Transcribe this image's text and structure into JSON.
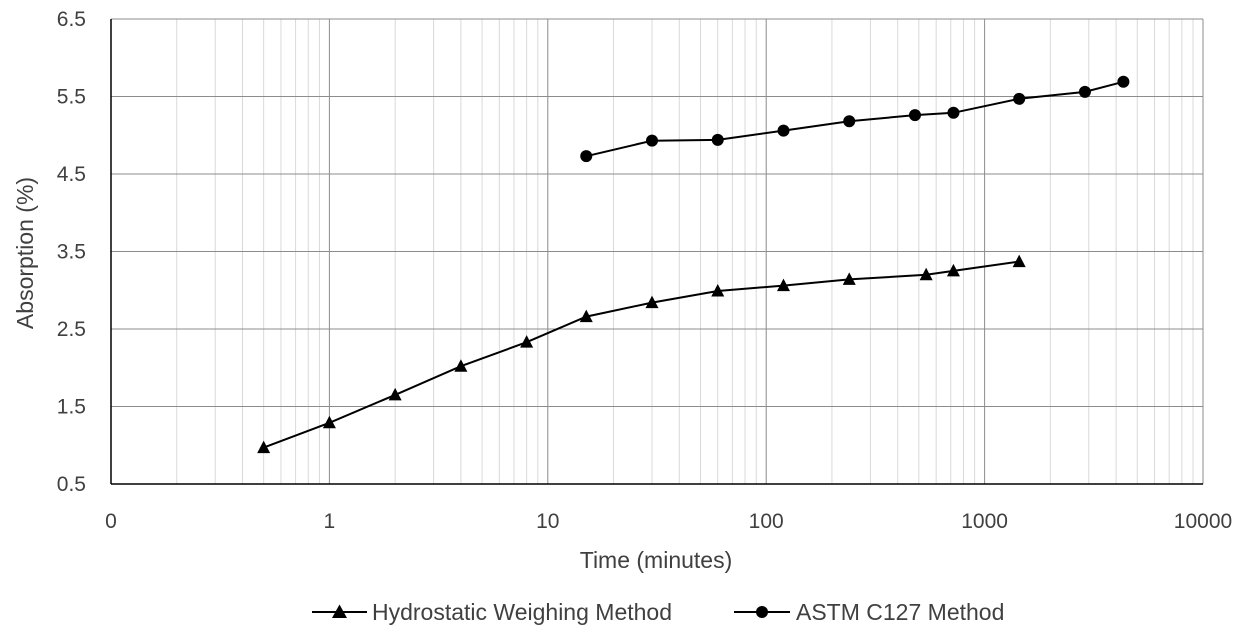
{
  "chart_data": {
    "type": "line",
    "xlabel": "Time (minutes)",
    "ylabel": "Absorption (%)",
    "x_scale": "log",
    "x_ticks": [
      "0",
      "1",
      "10",
      "100",
      "1000",
      "10000"
    ],
    "y_ticks": [
      "6.5",
      "5.5",
      "4.5",
      "3.5",
      "2.5",
      "1.5",
      "0.5"
    ],
    "xlim": [
      0.1,
      10000
    ],
    "ylim": [
      0.5,
      6.5
    ],
    "grid": true,
    "legend_position": "bottom",
    "series": [
      {
        "name": "Hydrostatic Weighing Method",
        "marker": "triangle",
        "color": "#000000",
        "x": [
          0.5,
          1,
          2,
          4,
          8,
          15,
          30,
          60,
          120,
          240,
          540,
          720,
          1440
        ],
        "y": [
          0.97,
          1.29,
          1.65,
          2.02,
          2.33,
          2.66,
          2.84,
          2.99,
          3.06,
          3.14,
          3.2,
          3.25,
          3.37
        ]
      },
      {
        "name": "ASTM C127 Method",
        "marker": "circle",
        "color": "#000000",
        "x": [
          15,
          30,
          60,
          120,
          240,
          480,
          720,
          1440,
          2880,
          4320
        ],
        "y": [
          4.73,
          4.93,
          4.94,
          5.06,
          5.18,
          5.26,
          5.29,
          5.47,
          5.56,
          5.69
        ]
      }
    ]
  }
}
